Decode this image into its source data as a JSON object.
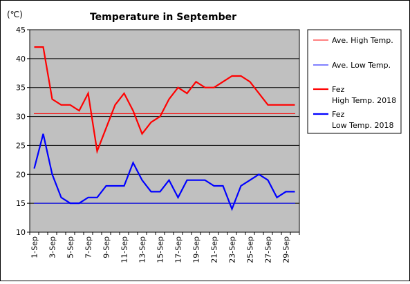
{
  "chart_data": {
    "type": "line",
    "title": "Temperature in September",
    "unit_label": "(℃)",
    "ylim": [
      10,
      45
    ],
    "yticks": [
      10,
      15,
      20,
      25,
      30,
      35,
      40,
      45
    ],
    "grid": true,
    "legend_position": "right",
    "x": [
      1,
      2,
      3,
      4,
      5,
      6,
      7,
      8,
      9,
      10,
      11,
      12,
      13,
      14,
      15,
      16,
      17,
      18,
      19,
      20,
      21,
      22,
      23,
      24,
      25,
      26,
      27,
      28,
      29,
      30
    ],
    "xtick_labels": [
      "1-Sep",
      "3-Sep",
      "5-Sep",
      "7-Sep",
      "9-Sep",
      "11-Sep",
      "13-Sep",
      "15-Sep",
      "17-Sep",
      "19-Sep",
      "21-Sep",
      "23-Sep",
      "25-Sep",
      "27-Sep",
      "29-Sep"
    ],
    "xtick_days": [
      1,
      3,
      5,
      7,
      9,
      11,
      13,
      15,
      17,
      19,
      21,
      23,
      25,
      27,
      29
    ],
    "series": [
      {
        "name": "Ave. High Temp.",
        "color": "#ff0000",
        "style": "thin",
        "values": [
          30.5,
          30.5,
          30.5,
          30.5,
          30.5,
          30.5,
          30.5,
          30.5,
          30.5,
          30.5,
          30.5,
          30.5,
          30.5,
          30.5,
          30.5,
          30.5,
          30.5,
          30.5,
          30.5,
          30.5,
          30.5,
          30.5,
          30.5,
          30.5,
          30.5,
          30.5,
          30.5,
          30.5,
          30.5,
          30.5
        ]
      },
      {
        "name": "Ave. Low Temp.",
        "color": "#0000ff",
        "style": "thin",
        "values": [
          15,
          15,
          15,
          15,
          15,
          15,
          15,
          15,
          15,
          15,
          15,
          15,
          15,
          15,
          15,
          15,
          15,
          15,
          15,
          15,
          15,
          15,
          15,
          15,
          15,
          15,
          15,
          15,
          15,
          15
        ]
      },
      {
        "name": "Fez\nHigh Temp. 2018",
        "color": "#ff0000",
        "style": "thick",
        "values": [
          42,
          42,
          33,
          32,
          32,
          31,
          34,
          24,
          28,
          32,
          34,
          31,
          27,
          29,
          30,
          33,
          35,
          34,
          36,
          35,
          35,
          36,
          37,
          37,
          36,
          34,
          32,
          32,
          32,
          32
        ]
      },
      {
        "name": "Fez\nLow Temp. 2018",
        "color": "#0000ff",
        "style": "thick",
        "values": [
          21,
          27,
          20,
          16,
          15,
          15,
          16,
          16,
          18,
          18,
          18,
          22,
          19,
          17,
          17,
          19,
          16,
          19,
          19,
          19,
          18,
          18,
          14,
          18,
          19,
          20,
          19,
          16,
          17,
          17
        ]
      }
    ]
  }
}
